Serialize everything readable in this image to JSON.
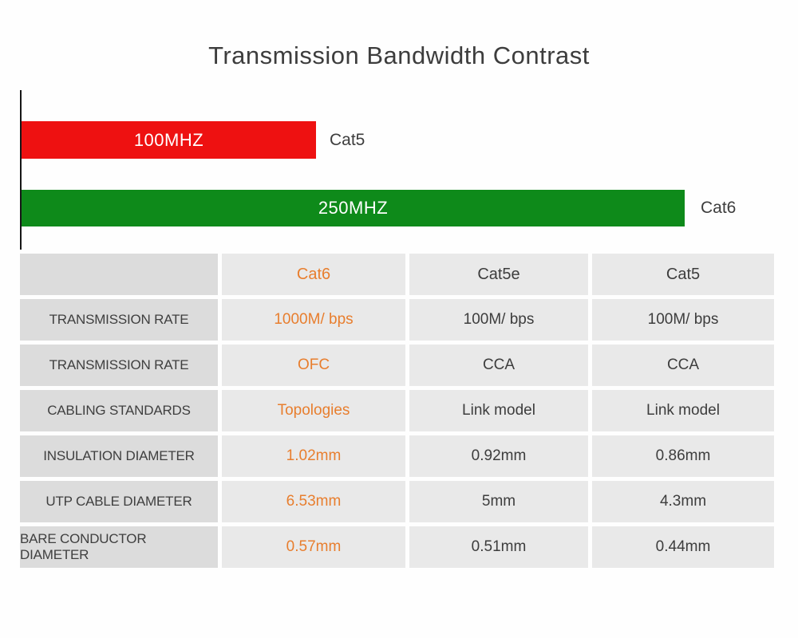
{
  "title": "Transmission Bandwidth Contrast",
  "colors": {
    "cat5_bar_red": "#ee1111",
    "cat6_bar_green": "#0e8a1a",
    "accent_orange": "#e87e2e",
    "dark_text": "#3d3d3d",
    "label_cell_bg": "#dcdcdc",
    "value_cell_bg": "#e9e9e9"
  },
  "chart": {
    "bars": [
      {
        "category": "Cat5",
        "label": "100MHZ",
        "value_mhz": 100,
        "color": "#ee1111"
      },
      {
        "category": "Cat6",
        "label": "250MHZ",
        "value_mhz": 250,
        "color": "#0e8a1a"
      }
    ]
  },
  "table": {
    "header": [
      "",
      "Cat6",
      "Cat5e",
      "Cat5"
    ],
    "rows": [
      {
        "label": "TRANSMISSION RATE",
        "values": [
          "1000M/ bps",
          "100M/ bps",
          "100M/ bps"
        ]
      },
      {
        "label": "TRANSMISSION RATE",
        "values": [
          "OFC",
          "CCA",
          "CCA"
        ]
      },
      {
        "label": "CABLING STANDARDS",
        "values": [
          "Topologies",
          "Link model",
          "Link model"
        ]
      },
      {
        "label": "INSULATION DIAMETER",
        "values": [
          "1.02mm",
          "0.92mm",
          "0.86mm"
        ]
      },
      {
        "label": "UTP CABLE DIAMETER",
        "values": [
          "6.53mm",
          "5mm",
          "4.3mm"
        ]
      },
      {
        "label": "BARE CONDUCTOR DIAMETER",
        "values": [
          "0.57mm",
          "0.51mm",
          "0.44mm"
        ]
      }
    ]
  },
  "chart_data": {
    "type": "bar",
    "orientation": "horizontal",
    "title": "Transmission Bandwidth Contrast",
    "categories": [
      "Cat5",
      "Cat6"
    ],
    "values": [
      100,
      250
    ],
    "unit": "MHZ",
    "bar_labels": [
      "100MHZ",
      "250MHZ"
    ],
    "bar_colors": [
      "#ee1111",
      "#0e8a1a"
    ],
    "xlabel": "",
    "ylabel": "",
    "grid": false,
    "legend": false,
    "table": {
      "columns": [
        "",
        "Cat6",
        "Cat5e",
        "Cat5"
      ],
      "rows": [
        [
          "TRANSMISSION RATE",
          "1000M/ bps",
          "100M/ bps",
          "100M/ bps"
        ],
        [
          "TRANSMISSION RATE",
          "OFC",
          "CCA",
          "CCA"
        ],
        [
          "CABLING STANDARDS",
          "Topologies",
          "Link model",
          "Link model"
        ],
        [
          "INSULATION DIAMETER",
          "1.02mm",
          "0.92mm",
          "0.86mm"
        ],
        [
          "UTP CABLE DIAMETER",
          "6.53mm",
          "5mm",
          "4.3mm"
        ],
        [
          "BARE CONDUCTOR DIAMETER",
          "0.57mm",
          "0.51mm",
          "0.44mm"
        ]
      ]
    }
  }
}
